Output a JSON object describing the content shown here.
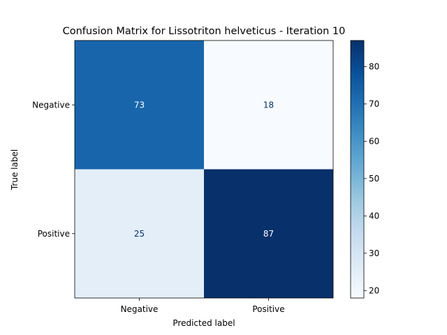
{
  "chart_data": {
    "type": "heatmap",
    "title": "Confusion Matrix for Lissotriton helveticus - Iteration 10",
    "xlabel": "Predicted label",
    "ylabel": "True label",
    "x_categories": [
      "Negative",
      "Positive"
    ],
    "y_categories": [
      "Negative",
      "Positive"
    ],
    "values": [
      [
        73,
        18
      ],
      [
        25,
        87
      ]
    ],
    "colormap": "Blues",
    "colorbar": {
      "min": 18,
      "max": 87,
      "ticks": [
        20,
        30,
        40,
        50,
        60,
        70,
        80
      ],
      "tick_labels": [
        "20",
        "30",
        "40",
        "50",
        "60",
        "70",
        "80"
      ]
    },
    "grid": false
  }
}
